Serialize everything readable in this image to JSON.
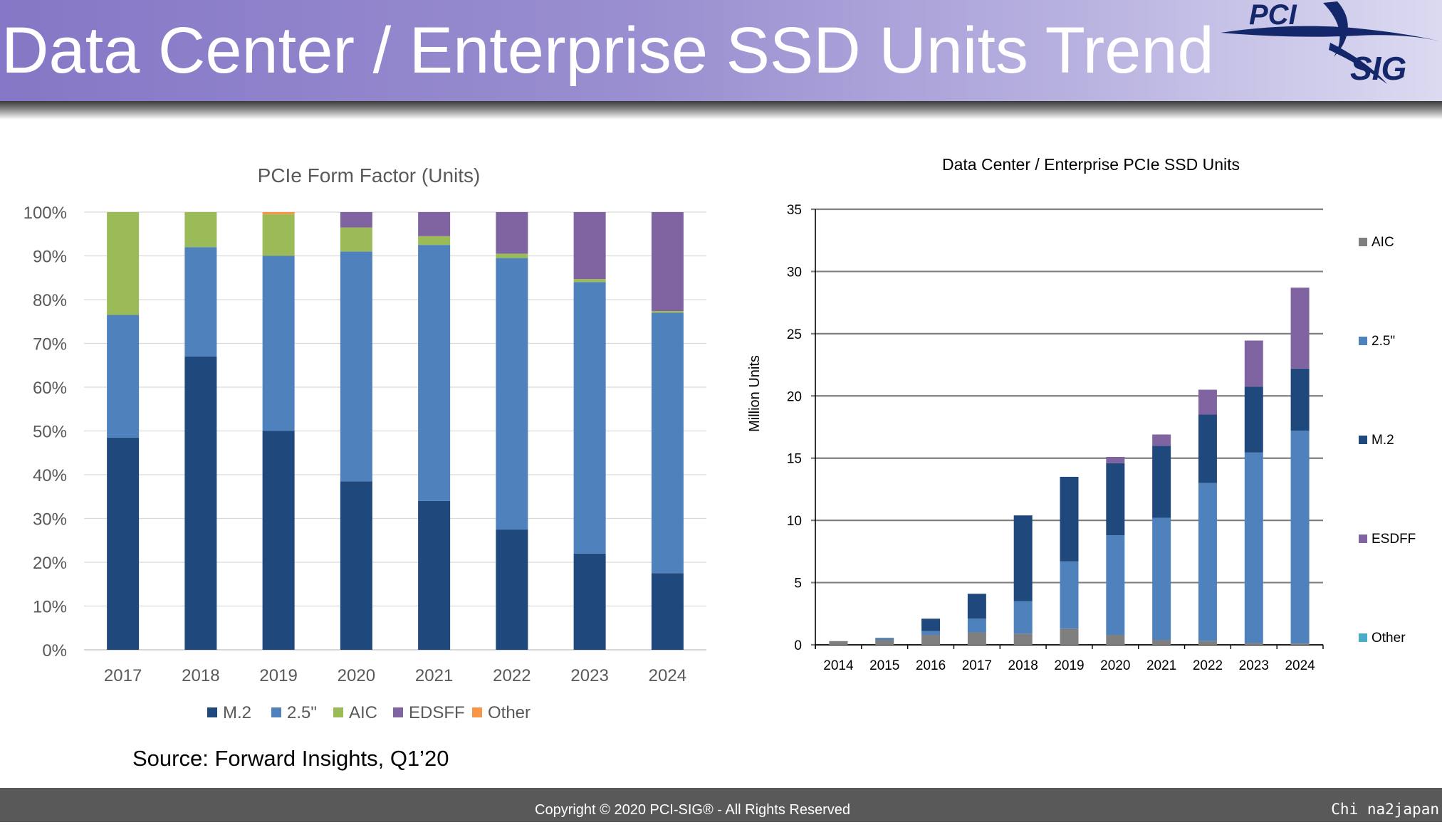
{
  "page": {
    "title": "Data Center / Enterprise SSD Units Trend",
    "logo_text_top": "PCI",
    "logo_text_bottom": "SIG",
    "source": "Source: Forward Insights, Q1’20",
    "copyright": "Copyright © 2020 PCI-SIG® - All Rights Reserved",
    "watermark": "Chi na2japan"
  },
  "colors": {
    "m2": "#1f497d",
    "s25": "#4f81bd",
    "aic_left": "#9bbb59",
    "edsff": "#8064a2",
    "other_left": "#f79646",
    "aic_right": "#7f7f7f",
    "other_right": "#4bacc6"
  },
  "chart_data": [
    {
      "type": "bar",
      "stacked": true,
      "title": "PCIe Form Factor (Units)",
      "categories": [
        "2017",
        "2018",
        "2019",
        "2020",
        "2021",
        "2022",
        "2023",
        "2024"
      ],
      "ylim": [
        0,
        100
      ],
      "yticks": [
        "0%",
        "10%",
        "20%",
        "30%",
        "40%",
        "50%",
        "60%",
        "70%",
        "80%",
        "90%",
        "100%"
      ],
      "grid": true,
      "legend": "bottom",
      "series": [
        {
          "name": "M.2",
          "color": "#1f497d",
          "values": [
            48.5,
            67,
            50,
            38.5,
            34,
            27.5,
            22,
            17.5
          ]
        },
        {
          "name": "2.5\"",
          "color": "#4f81bd",
          "values": [
            28,
            25,
            40,
            52.5,
            58.5,
            62,
            62,
            59.5
          ]
        },
        {
          "name": "AIC",
          "color": "#9bbb59",
          "values": [
            23.5,
            8,
            9.5,
            5.5,
            2,
            1,
            0.7,
            0.4
          ]
        },
        {
          "name": "EDSFF",
          "color": "#8064a2",
          "values": [
            0,
            0,
            0,
            3.5,
            5.5,
            9.5,
            15.3,
            22.6
          ]
        },
        {
          "name": "Other",
          "color": "#f79646",
          "values": [
            0,
            0,
            0.5,
            0,
            0,
            0,
            0,
            0
          ]
        }
      ]
    },
    {
      "type": "bar",
      "stacked": true,
      "title": "Data Center / Enterprise PCIe SSD Units",
      "ylabel": "Million Units",
      "categories": [
        "2014",
        "2015",
        "2016",
        "2017",
        "2018",
        "2019",
        "2020",
        "2021",
        "2022",
        "2023",
        "2024"
      ],
      "ylim": [
        0,
        35
      ],
      "yticks": [
        "0",
        "5",
        "10",
        "15",
        "20",
        "25",
        "30",
        "35"
      ],
      "grid": true,
      "legend": "right",
      "series": [
        {
          "name": "AIC",
          "color": "#7f7f7f",
          "values": [
            0.3,
            0.4,
            0.8,
            1.0,
            0.9,
            1.3,
            0.8,
            0.4,
            0.3,
            0.15,
            0.1
          ]
        },
        {
          "name": "2.5\"",
          "color": "#4f81bd",
          "values": [
            0,
            0.1,
            0.3,
            1.1,
            2.6,
            5.4,
            8.0,
            9.8,
            12.7,
            15.3,
            17.1
          ]
        },
        {
          "name": "M.2",
          "color": "#1f497d",
          "values": [
            0,
            0.05,
            1.0,
            2.0,
            6.9,
            6.8,
            5.8,
            5.8,
            5.5,
            5.3,
            5.0
          ]
        },
        {
          "name": "ESDFF",
          "color": "#8064a2",
          "values": [
            0,
            0,
            0,
            0,
            0,
            0,
            0.5,
            0.9,
            2.0,
            3.7,
            6.5
          ]
        },
        {
          "name": "Other",
          "color": "#4bacc6",
          "values": [
            0,
            0,
            0,
            0,
            0,
            0,
            0,
            0,
            0,
            0,
            0
          ]
        }
      ]
    }
  ]
}
